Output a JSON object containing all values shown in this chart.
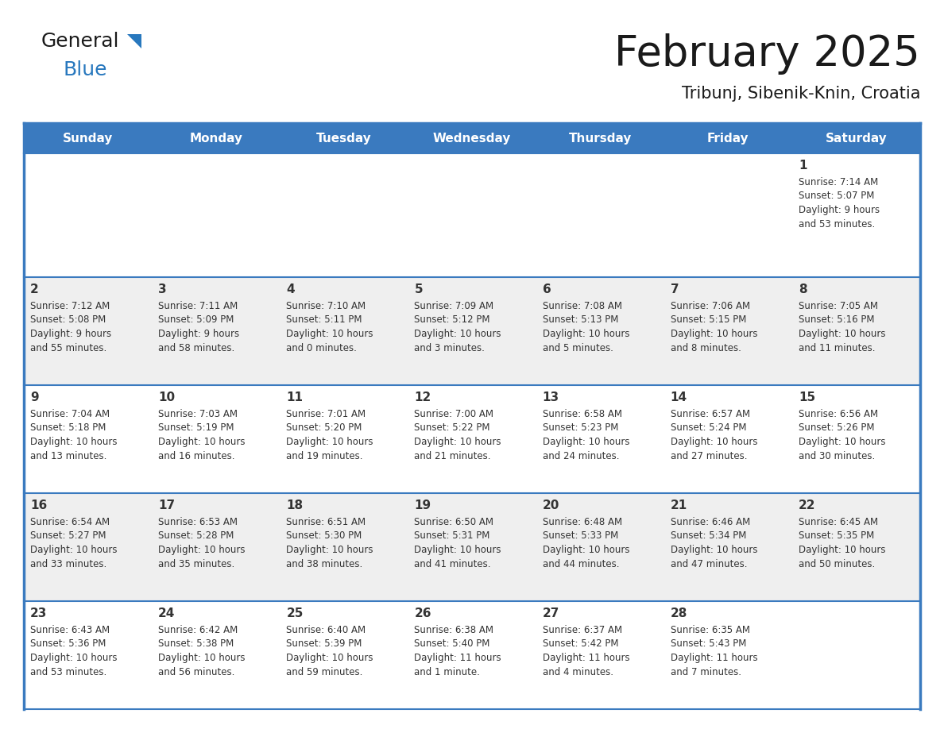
{
  "title": "February 2025",
  "subtitle": "Tribunj, Sibenik-Knin, Croatia",
  "header_bg": "#3A7ABF",
  "header_text_color": "#FFFFFF",
  "row_bg_light": "#EFEFEF",
  "row_bg_white": "#FFFFFF",
  "border_color": "#3A7ABF",
  "text_color": "#333333",
  "days_of_week": [
    "Sunday",
    "Monday",
    "Tuesday",
    "Wednesday",
    "Thursday",
    "Friday",
    "Saturday"
  ],
  "logo_general_color": "#1a1a1a",
  "logo_blue_color": "#2878BE",
  "logo_triangle_color": "#2878BE",
  "title_color": "#1a1a1a",
  "calendar_data": [
    [
      null,
      null,
      null,
      null,
      null,
      null,
      {
        "day": 1,
        "sunrise": "7:14 AM",
        "sunset": "5:07 PM",
        "daylight": "9 hours and 53 minutes."
      }
    ],
    [
      {
        "day": 2,
        "sunrise": "7:12 AM",
        "sunset": "5:08 PM",
        "daylight": "9 hours and 55 minutes."
      },
      {
        "day": 3,
        "sunrise": "7:11 AM",
        "sunset": "5:09 PM",
        "daylight": "9 hours and 58 minutes."
      },
      {
        "day": 4,
        "sunrise": "7:10 AM",
        "sunset": "5:11 PM",
        "daylight": "10 hours and 0 minutes."
      },
      {
        "day": 5,
        "sunrise": "7:09 AM",
        "sunset": "5:12 PM",
        "daylight": "10 hours and 3 minutes."
      },
      {
        "day": 6,
        "sunrise": "7:08 AM",
        "sunset": "5:13 PM",
        "daylight": "10 hours and 5 minutes."
      },
      {
        "day": 7,
        "sunrise": "7:06 AM",
        "sunset": "5:15 PM",
        "daylight": "10 hours and 8 minutes."
      },
      {
        "day": 8,
        "sunrise": "7:05 AM",
        "sunset": "5:16 PM",
        "daylight": "10 hours and 11 minutes."
      }
    ],
    [
      {
        "day": 9,
        "sunrise": "7:04 AM",
        "sunset": "5:18 PM",
        "daylight": "10 hours and 13 minutes."
      },
      {
        "day": 10,
        "sunrise": "7:03 AM",
        "sunset": "5:19 PM",
        "daylight": "10 hours and 16 minutes."
      },
      {
        "day": 11,
        "sunrise": "7:01 AM",
        "sunset": "5:20 PM",
        "daylight": "10 hours and 19 minutes."
      },
      {
        "day": 12,
        "sunrise": "7:00 AM",
        "sunset": "5:22 PM",
        "daylight": "10 hours and 21 minutes."
      },
      {
        "day": 13,
        "sunrise": "6:58 AM",
        "sunset": "5:23 PM",
        "daylight": "10 hours and 24 minutes."
      },
      {
        "day": 14,
        "sunrise": "6:57 AM",
        "sunset": "5:24 PM",
        "daylight": "10 hours and 27 minutes."
      },
      {
        "day": 15,
        "sunrise": "6:56 AM",
        "sunset": "5:26 PM",
        "daylight": "10 hours and 30 minutes."
      }
    ],
    [
      {
        "day": 16,
        "sunrise": "6:54 AM",
        "sunset": "5:27 PM",
        "daylight": "10 hours and 33 minutes."
      },
      {
        "day": 17,
        "sunrise": "6:53 AM",
        "sunset": "5:28 PM",
        "daylight": "10 hours and 35 minutes."
      },
      {
        "day": 18,
        "sunrise": "6:51 AM",
        "sunset": "5:30 PM",
        "daylight": "10 hours and 38 minutes."
      },
      {
        "day": 19,
        "sunrise": "6:50 AM",
        "sunset": "5:31 PM",
        "daylight": "10 hours and 41 minutes."
      },
      {
        "day": 20,
        "sunrise": "6:48 AM",
        "sunset": "5:33 PM",
        "daylight": "10 hours and 44 minutes."
      },
      {
        "day": 21,
        "sunrise": "6:46 AM",
        "sunset": "5:34 PM",
        "daylight": "10 hours and 47 minutes."
      },
      {
        "day": 22,
        "sunrise": "6:45 AM",
        "sunset": "5:35 PM",
        "daylight": "10 hours and 50 minutes."
      }
    ],
    [
      {
        "day": 23,
        "sunrise": "6:43 AM",
        "sunset": "5:36 PM",
        "daylight": "10 hours and 53 minutes."
      },
      {
        "day": 24,
        "sunrise": "6:42 AM",
        "sunset": "5:38 PM",
        "daylight": "10 hours and 56 minutes."
      },
      {
        "day": 25,
        "sunrise": "6:40 AM",
        "sunset": "5:39 PM",
        "daylight": "10 hours and 59 minutes."
      },
      {
        "day": 26,
        "sunrise": "6:38 AM",
        "sunset": "5:40 PM",
        "daylight": "11 hours and 1 minute."
      },
      {
        "day": 27,
        "sunrise": "6:37 AM",
        "sunset": "5:42 PM",
        "daylight": "11 hours and 4 minutes."
      },
      {
        "day": 28,
        "sunrise": "6:35 AM",
        "sunset": "5:43 PM",
        "daylight": "11 hours and 7 minutes."
      },
      null
    ]
  ]
}
